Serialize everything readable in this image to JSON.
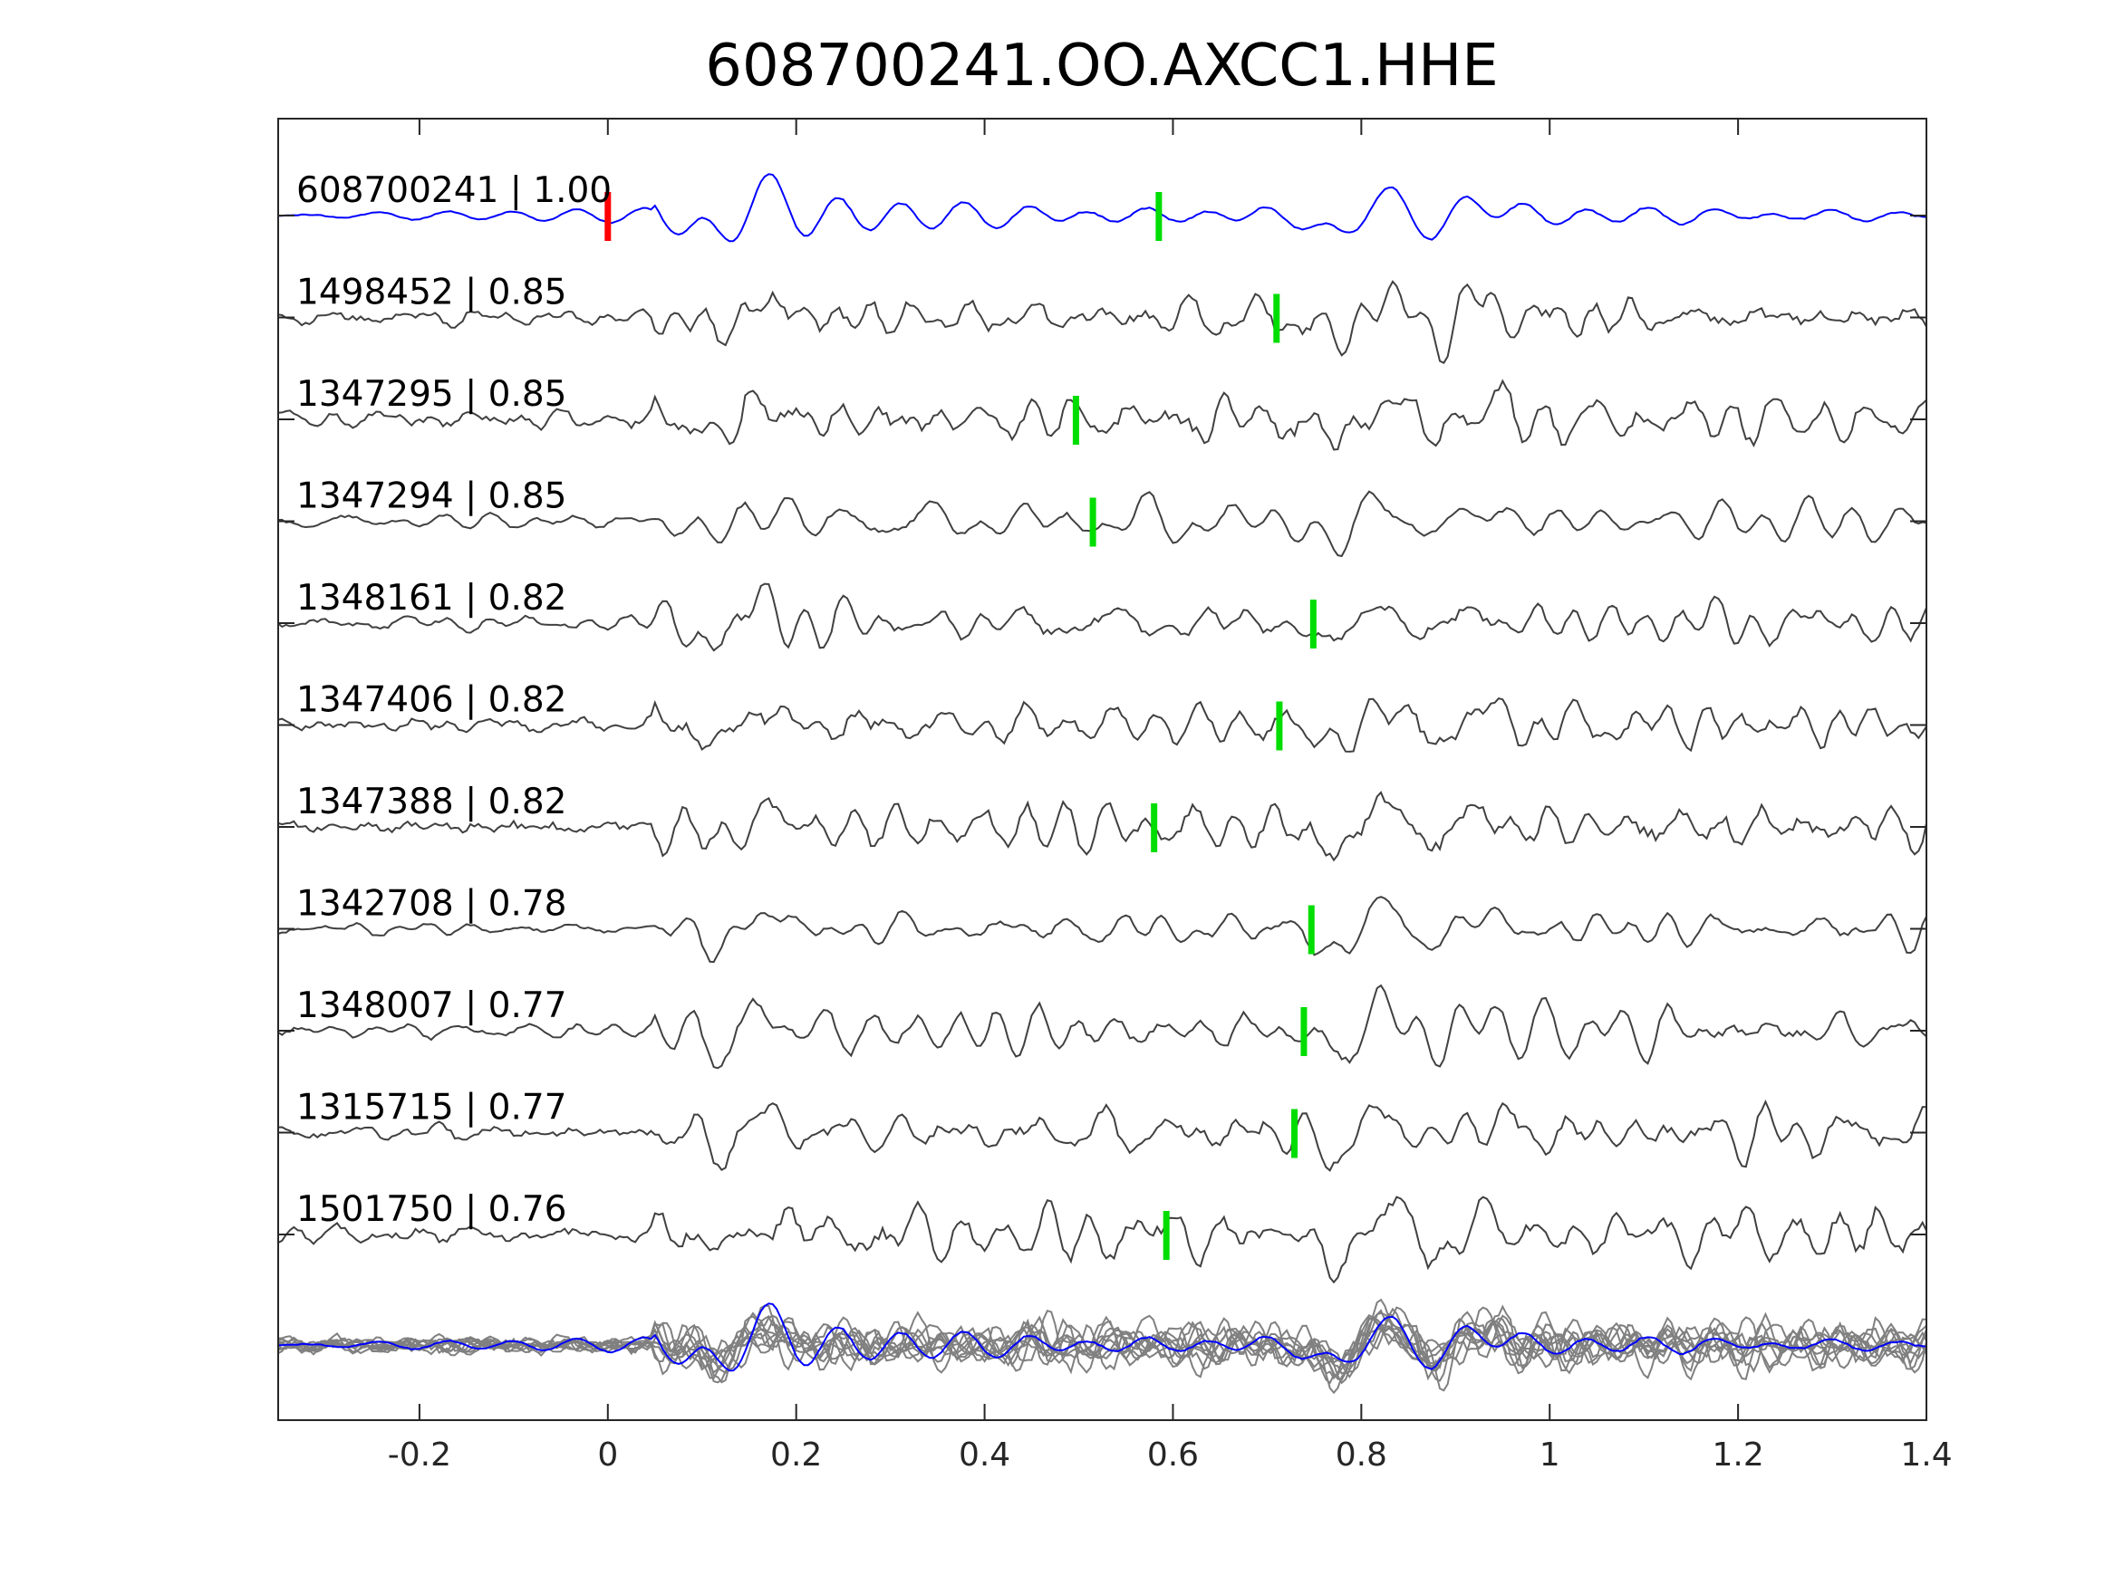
{
  "chart_data": {
    "type": "line",
    "title": "608700241.OO.AXCC1.HHE",
    "xlabel": "",
    "ylabel": "",
    "xlim": [
      -0.35,
      1.4
    ],
    "xticks": [
      -0.2,
      0,
      0.2,
      0.4,
      0.6,
      0.8,
      1,
      1.2,
      1.4
    ],
    "xtick_labels": [
      "-0.2",
      "0",
      "0.2",
      "0.4",
      "0.6",
      "0.8",
      "1",
      "1.2",
      "1.4"
    ],
    "grid": false,
    "legend": "none",
    "colors": {
      "template": "#0000ff",
      "neighbor": "#404040",
      "stack_neighbor": "#808080",
      "template_pick": "#ff0000",
      "neighbor_pick": "#00dd00",
      "axes": "#262626"
    },
    "reference_pick_time": 0,
    "traces": [
      {
        "label": "608700241 | 1.00",
        "event_id": "608700241",
        "cc": 1.0,
        "pick_time": 0.585,
        "is_template": true
      },
      {
        "label": "1498452 | 0.85",
        "event_id": "1498452",
        "cc": 0.85,
        "pick_time": 0.71
      },
      {
        "label": "1347295 | 0.85",
        "event_id": "1347295",
        "cc": 0.85,
        "pick_time": 0.497
      },
      {
        "label": "1347294 | 0.85",
        "event_id": "1347294",
        "cc": 0.85,
        "pick_time": 0.515
      },
      {
        "label": "1348161 | 0.82",
        "event_id": "1348161",
        "cc": 0.82,
        "pick_time": 0.749
      },
      {
        "label": "1347406 | 0.82",
        "event_id": "1347406",
        "cc": 0.82,
        "pick_time": 0.713
      },
      {
        "label": "1347388 | 0.82",
        "event_id": "1347388",
        "cc": 0.82,
        "pick_time": 0.58
      },
      {
        "label": "1342708 | 0.78",
        "event_id": "1342708",
        "cc": 0.78,
        "pick_time": 0.747
      },
      {
        "label": "1348007 | 0.77",
        "event_id": "1348007",
        "cc": 0.77,
        "pick_time": 0.739
      },
      {
        "label": "1315715 | 0.77",
        "event_id": "1315715",
        "cc": 0.77,
        "pick_time": 0.729
      },
      {
        "label": "1501750 | 0.76",
        "event_id": "1501750",
        "cc": 0.76,
        "pick_time": 0.593
      }
    ]
  }
}
